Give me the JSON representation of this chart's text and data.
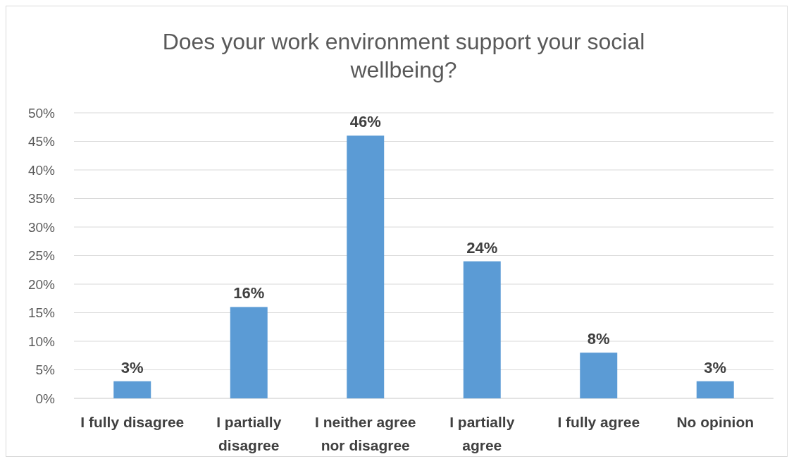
{
  "chart_data": {
    "type": "bar",
    "title": "Does your work environment support your social wellbeing?",
    "categories": [
      "I fully disagree",
      "I partially disagree",
      "I neither agree nor disagree",
      "I partially agree",
      "I fully agree",
      "No opinion"
    ],
    "values": [
      3,
      16,
      46,
      24,
      8,
      3
    ],
    "value_labels": [
      "3%",
      "16%",
      "46%",
      "24%",
      "8%",
      "3%"
    ],
    "color": "#5b9bd5",
    "ylim": [
      0,
      50
    ],
    "yticks": [
      {
        "value": 0,
        "label": "0%"
      },
      {
        "value": 5,
        "label": "5%"
      },
      {
        "value": 10,
        "label": "10%"
      },
      {
        "value": 15,
        "label": "15%"
      },
      {
        "value": 20,
        "label": "20%"
      },
      {
        "value": 25,
        "label": "25%"
      },
      {
        "value": 30,
        "label": "30%"
      },
      {
        "value": 35,
        "label": "35%"
      },
      {
        "value": 40,
        "label": "40%"
      },
      {
        "value": 45,
        "label": "45%"
      },
      {
        "value": 50,
        "label": "50%"
      }
    ],
    "grid": "y"
  }
}
